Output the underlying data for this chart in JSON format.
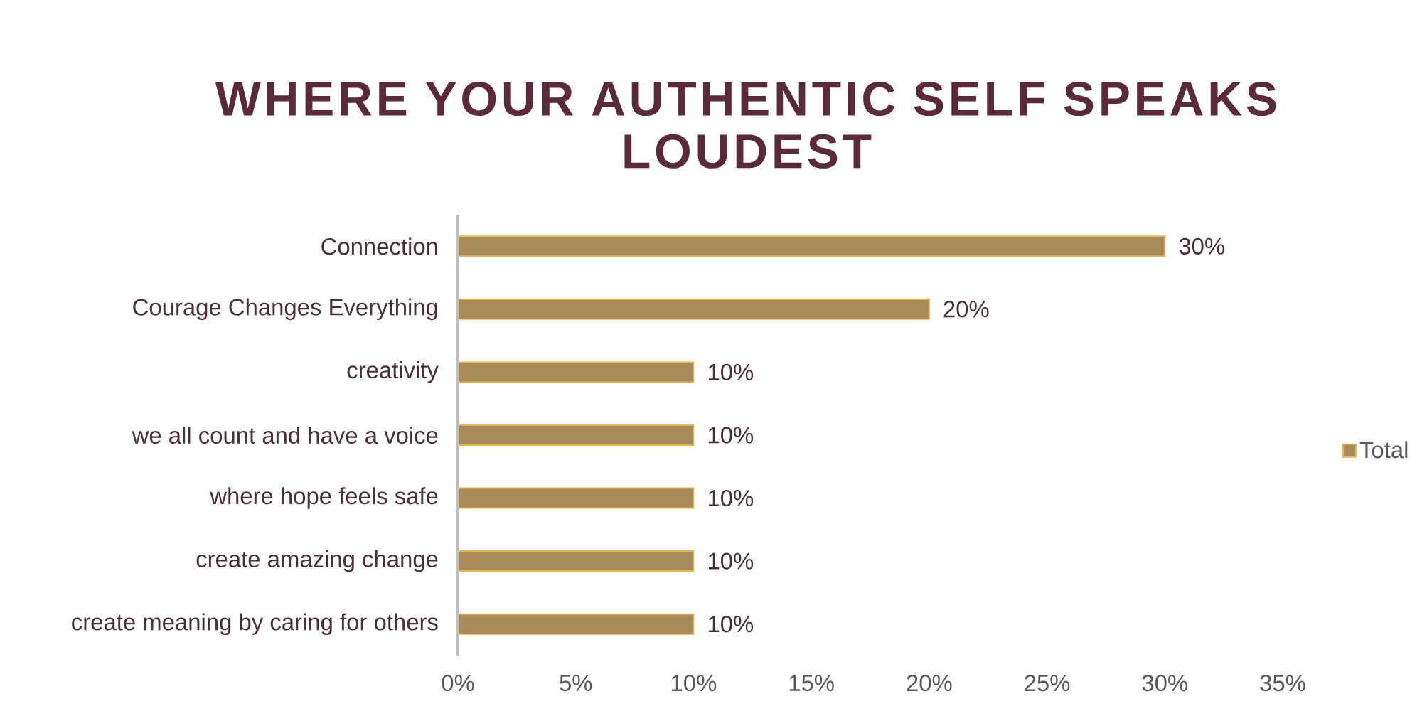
{
  "chart_data": {
    "type": "bar",
    "orientation": "horizontal",
    "title": "WHERE YOUR AUTHENTIC SELF SPEAKS LOUDEST",
    "categories": [
      "Connection",
      "Courage Changes Everything",
      "creativity",
      "we all count and have a voice",
      "where hope feels safe",
      "create amazing change",
      "create meaning by caring for others"
    ],
    "series": [
      {
        "name": "Total",
        "color": "#a8895a",
        "values": [
          30,
          20,
          10,
          10,
          10,
          10,
          10
        ],
        "value_labels": [
          "30%",
          "20%",
          "10%",
          "10%",
          "10%",
          "10%",
          "10%"
        ]
      }
    ],
    "xlim": [
      0,
      35
    ],
    "xticks": [
      {
        "value": 0,
        "label": "0%"
      },
      {
        "value": 5,
        "label": "5%"
      },
      {
        "value": 10,
        "label": "10%"
      },
      {
        "value": 15,
        "label": "15%"
      },
      {
        "value": 20,
        "label": "20%"
      },
      {
        "value": 25,
        "label": "25%"
      },
      {
        "value": 30,
        "label": "30%"
      },
      {
        "value": 35,
        "label": "35%"
      }
    ],
    "legend": "right"
  }
}
